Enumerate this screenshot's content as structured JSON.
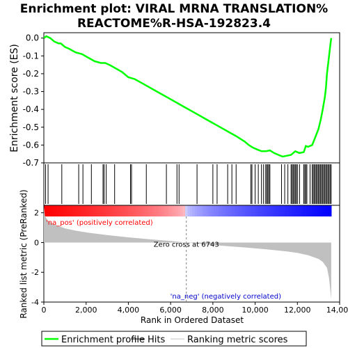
{
  "chart_data": {
    "type": "line",
    "title_line1": "Enrichment plot: VIRAL MRNA TRANSLATION%",
    "title_line2": "REACTOME%R-HSA-192823.4",
    "top_panel": {
      "ylabel": "Enrichment score (ES)",
      "ylim": [
        -0.7,
        0.03
      ],
      "yticks": [
        0.0,
        -0.1,
        -0.2,
        -0.3,
        -0.4,
        -0.5,
        -0.6,
        -0.7
      ],
      "ytick_labels": [
        "0.0",
        "-0.1",
        "-0.2",
        "-0.3",
        "-0.4",
        "-0.5",
        "-0.6",
        "-0.7"
      ],
      "grid": false,
      "series": [
        {
          "name": "Enrichment profile",
          "color": "#00ff00",
          "x": [
            0,
            120,
            300,
            500,
            700,
            800,
            1000,
            1200,
            1500,
            1800,
            2100,
            2400,
            2700,
            2900,
            3100,
            3400,
            3700,
            4000,
            4300,
            4600,
            4900,
            5200,
            5500,
            5800,
            6100,
            6400,
            6700,
            7000,
            7300,
            7600,
            7900,
            8200,
            8500,
            8800,
            9100,
            9300,
            9500,
            9700,
            9900,
            10100,
            10300,
            10500,
            10700,
            10900,
            11100,
            11300,
            11500,
            11700,
            11900,
            12100,
            12300,
            12400,
            12500,
            12700,
            12800,
            12900,
            13000,
            13100,
            13200,
            13300,
            13350,
            13400,
            13450,
            13500,
            13550,
            13600
          ],
          "y": [
            0.0,
            0.01,
            0.0,
            -0.02,
            -0.03,
            -0.03,
            -0.05,
            -0.06,
            -0.08,
            -0.09,
            -0.11,
            -0.13,
            -0.14,
            -0.14,
            -0.15,
            -0.17,
            -0.19,
            -0.22,
            -0.23,
            -0.25,
            -0.27,
            -0.29,
            -0.31,
            -0.33,
            -0.35,
            -0.37,
            -0.39,
            -0.41,
            -0.43,
            -0.45,
            -0.47,
            -0.49,
            -0.51,
            -0.53,
            -0.55,
            -0.565,
            -0.58,
            -0.6,
            -0.615,
            -0.625,
            -0.635,
            -0.635,
            -0.63,
            -0.645,
            -0.655,
            -0.665,
            -0.66,
            -0.655,
            -0.635,
            -0.645,
            -0.64,
            -0.605,
            -0.61,
            -0.6,
            -0.57,
            -0.54,
            -0.51,
            -0.46,
            -0.4,
            -0.33,
            -0.28,
            -0.2,
            -0.15,
            -0.1,
            -0.05,
            0.0
          ]
        }
      ]
    },
    "hits": [
      80,
      200,
      850,
      1650,
      1850,
      2250,
      2800,
      2850,
      2950,
      3350,
      4100,
      4150,
      4850,
      5800,
      6300,
      6400,
      7250,
      8000,
      8200,
      8700,
      8900,
      9100,
      9800,
      9850,
      10000,
      10150,
      10300,
      10400,
      10500,
      10550,
      10600,
      10650,
      10700,
      11250,
      11400,
      11550,
      11700,
      11750,
      11800,
      11850,
      11900,
      11950,
      12000,
      12100,
      12300,
      12350,
      12400,
      12450,
      12600,
      12700,
      12750,
      12800,
      12850,
      12900,
      12950,
      13000,
      13050,
      13100,
      13150,
      13200,
      13250,
      13300,
      13350,
      13400,
      13450,
      13500,
      13550,
      13600
    ],
    "bottom_panel": {
      "ylabel": "Ranked list metric (PreRanked)",
      "xlabel": "Rank in Ordered Dataset",
      "ylim": [
        -4,
        2.5
      ],
      "yticks": [
        2,
        0,
        -2,
        -4
      ],
      "ytick_labels": [
        "2",
        "0",
        "-2",
        "-4"
      ],
      "xlim": [
        0,
        14000
      ],
      "xticks": [
        0,
        2000,
        4000,
        6000,
        8000,
        10000,
        12000,
        14000
      ],
      "xtick_labels": [
        "0",
        "2,000",
        "4,000",
        "6,000",
        "8,000",
        "10,000",
        "12,000",
        "14,000"
      ],
      "metric_x": [
        0,
        50,
        200,
        500,
        1000,
        1500,
        2000,
        3000,
        4000,
        5000,
        6000,
        6743,
        7500,
        8500,
        9500,
        10500,
        11500,
        12000,
        12500,
        13000,
        13200,
        13400,
        13500,
        13600
      ],
      "metric_y": [
        2.4,
        1.8,
        1.45,
        1.2,
        0.95,
        0.8,
        0.68,
        0.5,
        0.35,
        0.22,
        0.1,
        0.0,
        -0.1,
        -0.22,
        -0.33,
        -0.45,
        -0.6,
        -0.7,
        -0.85,
        -1.1,
        -1.3,
        -1.7,
        -2.4,
        -3.8
      ],
      "zero_cross_rank": 6743,
      "zero_cross_label": "Zero cross at 6743",
      "pos_label": "'na_pos' (positively correlated)",
      "neg_label": "'na_neg' (negatively correlated)"
    },
    "legend": {
      "placement": "bottom",
      "items": [
        {
          "label": "Enrichment profile",
          "color": "#00ff00"
        },
        {
          "label": "Hits",
          "color": "#000000"
        },
        {
          "label": "Ranking metric scores",
          "color": "#c0c0c0"
        }
      ]
    },
    "colors": {
      "es_line": "#00ff00",
      "hit_line": "#000000",
      "metric_fill": "#c0c0c0",
      "pos_label": "#ff0000",
      "neg_label": "#0000cc",
      "zero_line": "#808080"
    }
  }
}
